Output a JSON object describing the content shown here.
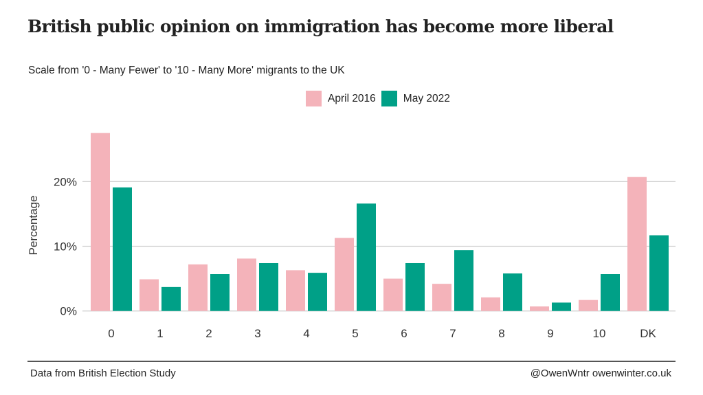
{
  "chart_data": {
    "type": "bar",
    "title": "British public opinion on immigration has become more liberal",
    "subtitle": "Scale from '0 - Many Fewer' to '10 - Many More' migrants to the UK",
    "xlabel": "",
    "ylabel": "Percentage",
    "categories": [
      "0",
      "1",
      "2",
      "3",
      "4",
      "5",
      "6",
      "7",
      "8",
      "9",
      "10",
      "DK"
    ],
    "series": [
      {
        "name": "April 2016",
        "color": "#f4b3ba",
        "values": [
          27.5,
          4.9,
          7.2,
          8.1,
          6.3,
          11.3,
          5.0,
          4.2,
          2.1,
          0.7,
          1.7,
          20.7
        ]
      },
      {
        "name": "May 2022",
        "color": "#00a087",
        "values": [
          19.1,
          3.7,
          5.7,
          7.4,
          5.9,
          16.6,
          7.4,
          9.4,
          5.8,
          1.3,
          5.7,
          11.7
        ]
      }
    ],
    "ylim": [
      0,
      28
    ],
    "yticks": [
      0,
      10,
      20
    ],
    "ytick_labels": [
      "0%",
      "10%",
      "20%"
    ],
    "grid": true,
    "legend_position": "top-center"
  },
  "footer": {
    "source": "Data from British Election Study",
    "credit": "@OwenWntr owenwinter.co.uk"
  }
}
